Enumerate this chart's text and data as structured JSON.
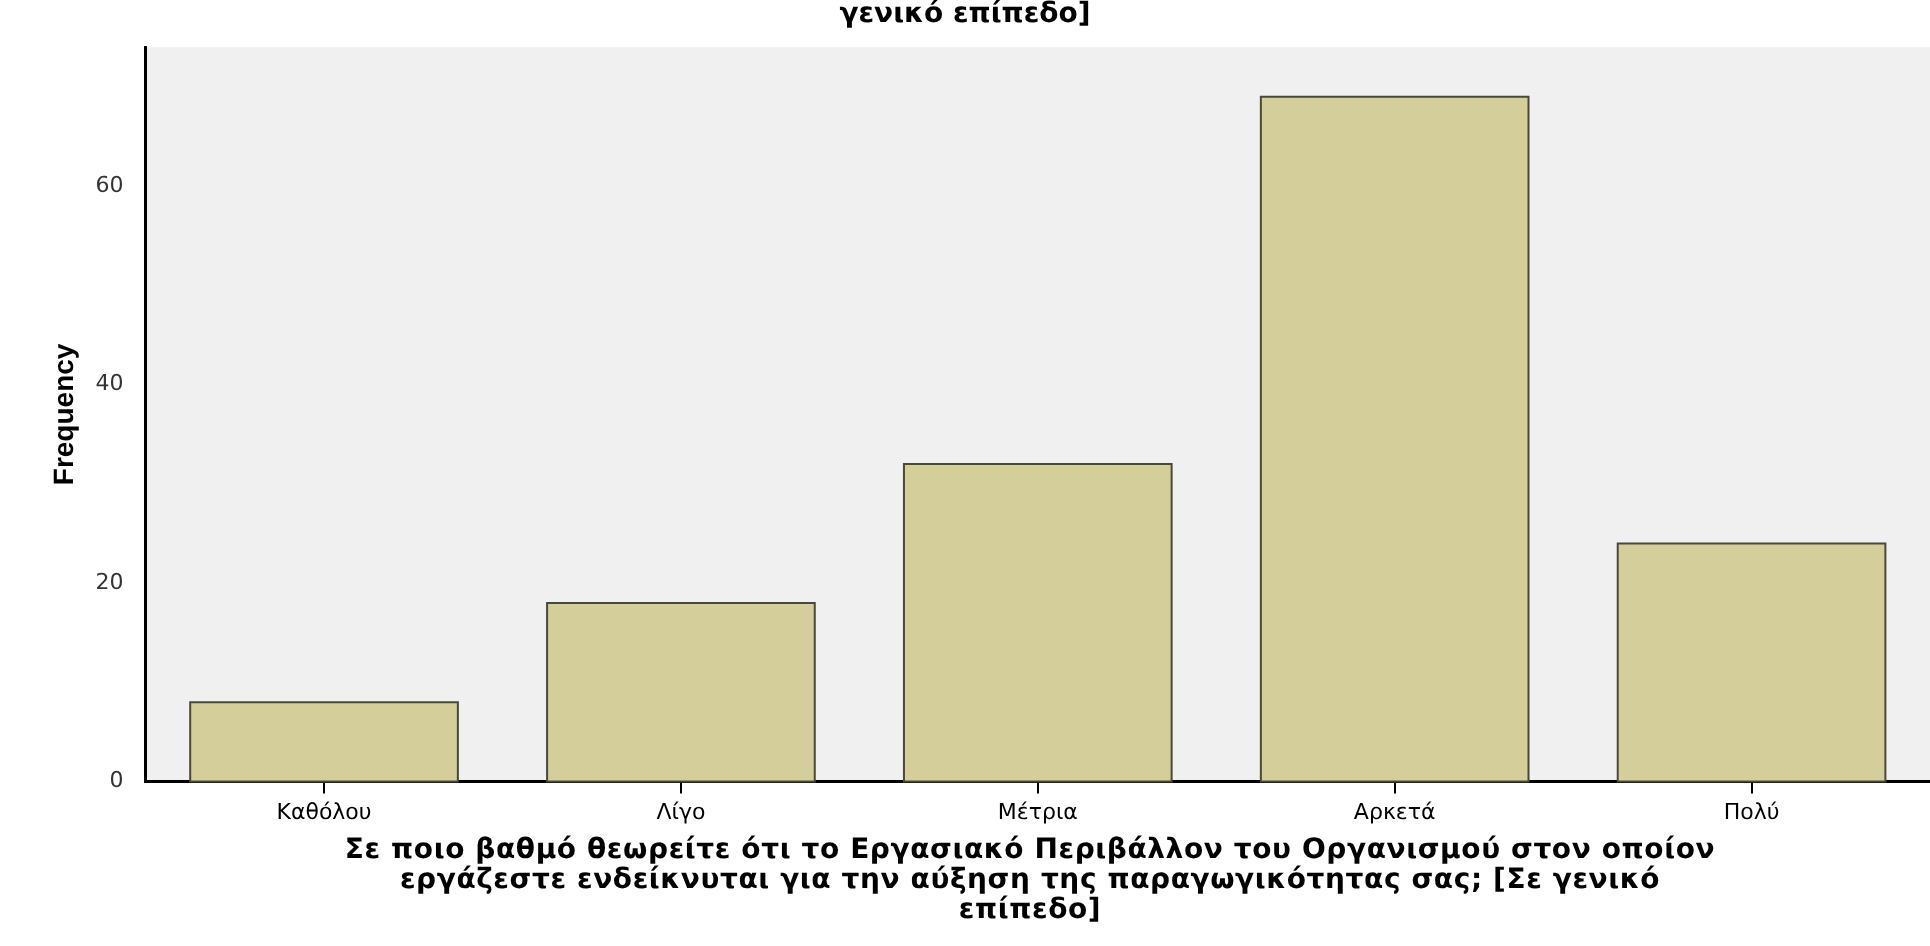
{
  "chart_data": {
    "type": "bar",
    "title": "γενικό επίπεδο]",
    "xlabel": "Σε ποιο βαθμό θεωρείτε ότι το Εργασιακό Περιβάλλον του Οργανισμού στον οποίον εργάζεστε ενδείκνυται για την αύξηση της παραγωγικότητας σας; [Σε γενικό επίπεδο]",
    "ylabel": "Frequency",
    "categories": [
      "Καθόλου",
      "Λίγο",
      "Μέτρια",
      "Αρκετά",
      "Πολύ"
    ],
    "values": [
      8,
      18,
      32,
      69,
      24
    ],
    "color": "#d3ce9a",
    "ylim": [
      0,
      74
    ],
    "yticks": [
      0,
      20,
      40,
      60
    ],
    "grid": false
  }
}
